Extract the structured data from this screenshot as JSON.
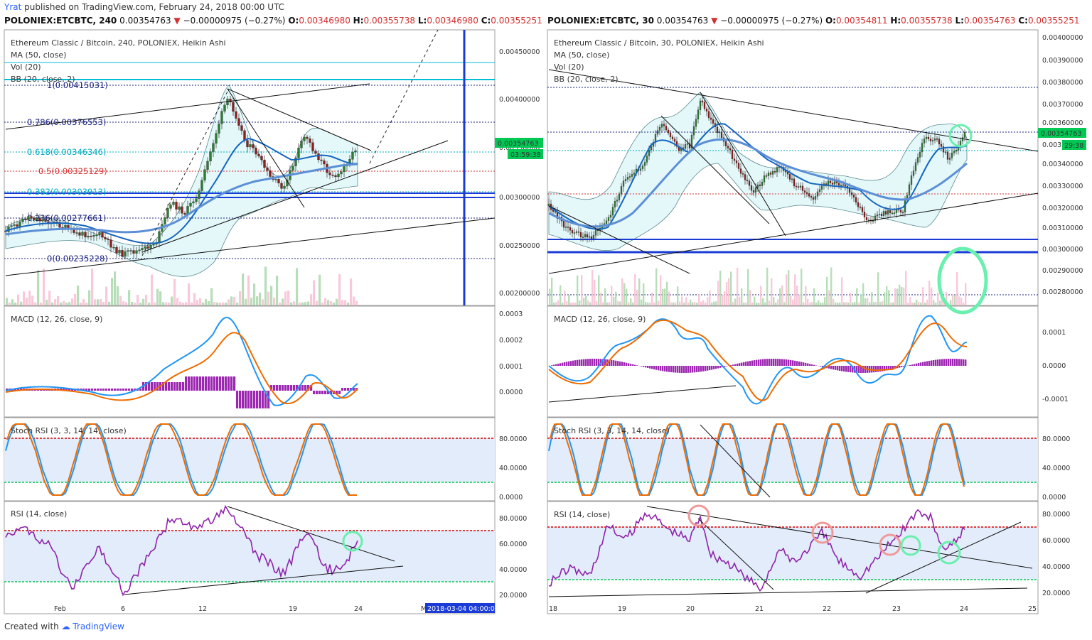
{
  "header": {
    "user": "Yrat",
    "published": " published on TradingView.com, February 24, 2018 00:00 UTC"
  },
  "left": {
    "symbol": "POLONIEX:ETCBTC, 240",
    "price": "0.00354763",
    "change": "−0.00000975 (−0.27%)",
    "o_label": "O:",
    "o": "0.00346980",
    "h_label": "H:",
    "h": "0.00355738",
    "l_label": "L:",
    "l": "0.00346980",
    "c_label": "C:",
    "c": "0.00355251",
    "legend": [
      "Ethereum Classic / Bitcoin, 240, POLONIEX, Heikin Ashi",
      "MA (50, close)",
      "Vol (20)",
      "BB (20, close, 2)"
    ],
    "price_ticks": [
      "0.00450000",
      "0.00400000",
      "0.00350000",
      "0.00300000",
      "0.00250000",
      "0.00200000"
    ],
    "price_badge": "0.00354763",
    "time_badge": "03:59:38",
    "fib": [
      {
        "label": "1(0.00415031)",
        "color": "#1a237e"
      },
      {
        "label": "0.786(0.00376553)",
        "color": "#1a237e"
      },
      {
        "label": "0.618(0.00346346)",
        "color": "#00acc1"
      },
      {
        "label": "0.5(0.00325129)",
        "color": "#d32f2f"
      },
      {
        "label": "0.382(0.00303913)",
        "color": "#00acc1"
      },
      {
        "label": "0.236(0.00277661)",
        "color": "#1a237e"
      },
      {
        "label": "0(0.00235228)",
        "color": "#1a237e"
      }
    ],
    "macd_label": "MACD (12, 26, close, 9)",
    "macd_ticks": [
      "0.0003",
      "0.0002",
      "0.0001",
      "0.0000"
    ],
    "stoch_label": "Stoch RSI (3, 3, 14, 14, close)",
    "stoch_ticks": [
      "80.0000",
      "40.0000",
      "0.0000"
    ],
    "rsi_label": "RSI (14, close)",
    "rsi_ticks": [
      "80.0000",
      "60.0000",
      "40.0000",
      "20.0000"
    ],
    "x_ticks": [
      "Feb",
      "6",
      "12",
      "19",
      "24",
      "Ma"
    ],
    "date_badge": "2018-03-04 04:00:0"
  },
  "right": {
    "symbol": "POLONIEX:ETCBTC, 30",
    "price": "0.00354763",
    "change": "−0.00000975 (−0.27%)",
    "o_label": "O:",
    "o": "0.00354811",
    "h_label": "H:",
    "h": "0.00355738",
    "l_label": "L:",
    "l": "0.00354763",
    "c_label": "C:",
    "c": "0.00355251",
    "legend": [
      "Ethereum Classic / Bitcoin, 30, POLONIEX, Heikin Ashi",
      "MA (50, close)",
      "Vol (20)",
      "BB (20, close, 2)"
    ],
    "price_ticks": [
      "0.00400000",
      "0.00390000",
      "0.00380000",
      "0.00370000",
      "0.00360000",
      "0.00350000",
      "0.00340000",
      "0.00330000",
      "0.00320000",
      "0.00310000",
      "0.00300000",
      "0.00290000",
      "0.00280000"
    ],
    "price_badge": "0.00354763",
    "time_badge": "29:38",
    "macd_label": "MACD (12, 26, close, 9)",
    "macd_ticks": [
      "0.0001",
      "0.0000",
      "-0.0001"
    ],
    "stoch_label": "Stoch RSI (3, 3, 14, 14, close)",
    "stoch_ticks": [
      "80.0000",
      "40.0000",
      "0.0000"
    ],
    "rsi_label": "RSI (14, close)",
    "rsi_ticks": [
      "80.0000",
      "60.0000",
      "40.0000",
      "20.0000"
    ],
    "x_ticks": [
      "18",
      "19",
      "20",
      "21",
      "22",
      "23",
      "24",
      "25"
    ]
  },
  "footer": {
    "created": "Created with",
    "brand": "TradingView"
  },
  "colors": {
    "up": "#26a69a",
    "down": "#ef5350",
    "ma": "#1e88e5",
    "macd": "#2196f3",
    "signal": "#ef6c00",
    "hist": "#9c27b0",
    "rsi": "#8e24aa",
    "ob": "#d50000",
    "os": "#00c853",
    "green_badge": "#00c853"
  },
  "chart_data": [
    {
      "type": "candlestick",
      "title": "Ethereum Classic / Bitcoin, 240, POLONIEX, Heikin Ashi",
      "x_ticks": [
        "Feb",
        "6",
        "12",
        "19",
        "24"
      ],
      "ylim": [
        0.0019,
        0.0047
      ],
      "close_approx": [
        0.00285,
        0.0029,
        0.00282,
        0.00272,
        0.0026,
        0.00248,
        0.0024,
        0.00245,
        0.0026,
        0.00285,
        0.0031,
        0.0036,
        0.0041,
        0.00375,
        0.0035,
        0.0033,
        0.0031,
        0.0034,
        0.0037,
        0.00335,
        0.0032,
        0.00355
      ],
      "last": 0.00354763
    },
    {
      "type": "candlestick",
      "title": "Ethereum Classic / Bitcoin, 30, POLONIEX, Heikin Ashi",
      "x_ticks": [
        "18",
        "19",
        "20",
        "21",
        "22",
        "23",
        "24",
        "25"
      ],
      "ylim": [
        0.00275,
        0.00405
      ],
      "close_approx": [
        0.0032,
        0.0031,
        0.0033,
        0.0036,
        0.0034,
        0.0037,
        0.0035,
        0.0033,
        0.0034,
        0.0032,
        0.00335,
        0.0031,
        0.00315,
        0.0035,
        0.0034,
        0.00355
      ],
      "last": 0.00354763
    }
  ]
}
